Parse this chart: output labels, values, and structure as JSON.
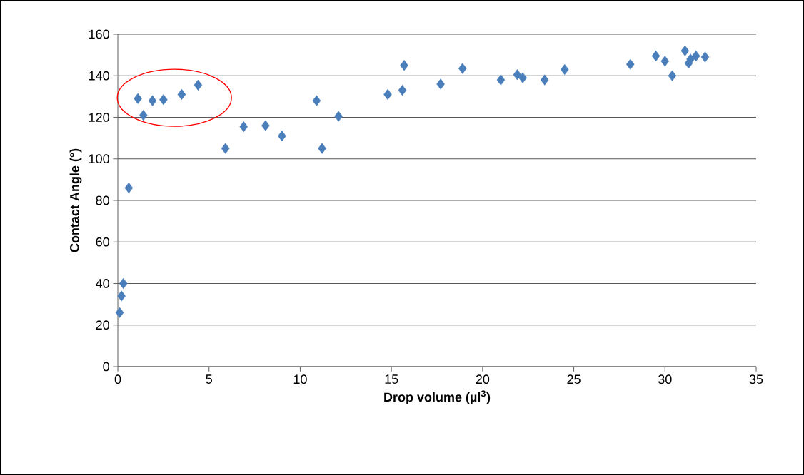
{
  "chart_data": {
    "type": "scatter",
    "xlabel": "Drop volume (µl$^{3}$)",
    "ylabel": "Contact Angle (°)",
    "x": [
      0.1,
      0.2,
      0.3,
      0.6,
      1.1,
      1.4,
      1.9,
      2.5,
      3.5,
      4.4,
      5.9,
      6.9,
      8.1,
      9.0,
      10.9,
      11.2,
      12.1,
      14.8,
      15.6,
      15.7,
      17.7,
      18.9,
      21.0,
      21.9,
      22.2,
      23.4,
      24.5,
      28.1,
      29.5,
      30.0,
      30.4,
      31.1,
      31.3,
      31.4,
      31.7,
      32.2
    ],
    "values": [
      26,
      34,
      40,
      86,
      129,
      121,
      128,
      128.5,
      131,
      135.5,
      105,
      115.5,
      116,
      111,
      128,
      105,
      120.5,
      131,
      133,
      145,
      136,
      143.5,
      138,
      140.5,
      139,
      138,
      143,
      145.5,
      149.5,
      147,
      140,
      152,
      146,
      148,
      149.5,
      149
    ],
    "color": "#4a7ebb",
    "marker": "diamond",
    "grid": "y",
    "xlim": [
      0,
      35
    ],
    "xticks": [
      0,
      5,
      10,
      15,
      20,
      25,
      30,
      35
    ],
    "ylim": [
      0,
      160
    ],
    "yticks": [
      0,
      20,
      40,
      60,
      80,
      100,
      120,
      140,
      160
    ]
  }
}
